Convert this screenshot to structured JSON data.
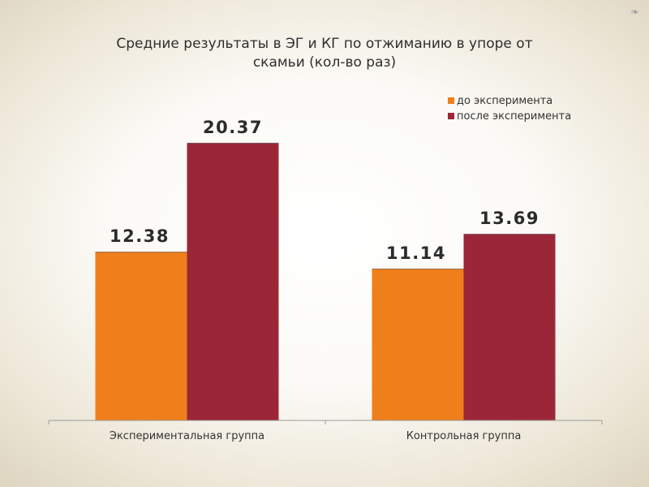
{
  "decoration": {
    "corner_glyph": "❧"
  },
  "chart_data": {
    "type": "bar",
    "title": "Средние результаты в ЭГ и КГ по отжиманию в упоре от скамьи (кол-во раз)",
    "title_lines": [
      "Средние результаты в ЭГ и КГ по отжиманию в упоре от",
      "скамьи (кол-во раз)"
    ],
    "categories": [
      "Экспериментальная группа",
      "Контрольная группа"
    ],
    "series": [
      {
        "name": "до эксперимента",
        "values": [
          12.38,
          11.14
        ],
        "color": "#ef7f1a"
      },
      {
        "name": "после эксперимента",
        "values": [
          20.37,
          13.69
        ],
        "color": "#9b2637"
      }
    ],
    "xlabel": "",
    "ylabel": "",
    "ylim": [
      0,
      27
    ],
    "grid": false,
    "legend": "top-right",
    "data_labels": true
  }
}
